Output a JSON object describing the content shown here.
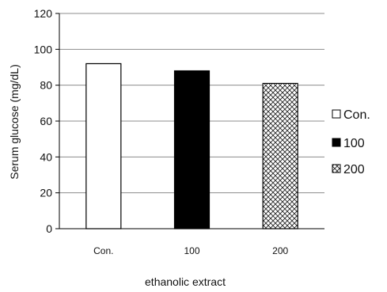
{
  "chart_data": {
    "type": "bar",
    "categories": [
      "Con.",
      "100",
      "200"
    ],
    "values": [
      92,
      88,
      81
    ],
    "xlabel": "ethanolic  extract",
    "ylabel": "Serum glucose (mg/dL)",
    "ylim": [
      0,
      120
    ],
    "yticks": [
      0,
      20,
      40,
      60,
      80,
      100,
      120
    ],
    "grid": "horizontal",
    "legend_position": "right",
    "legend": [
      "Con.",
      "100",
      "200"
    ],
    "series_styles": [
      {
        "fill": "#ffffff",
        "pattern": "solid"
      },
      {
        "fill": "#000000",
        "pattern": "solid"
      },
      {
        "fill": "#ffffff",
        "pattern": "crosshatch"
      }
    ]
  }
}
